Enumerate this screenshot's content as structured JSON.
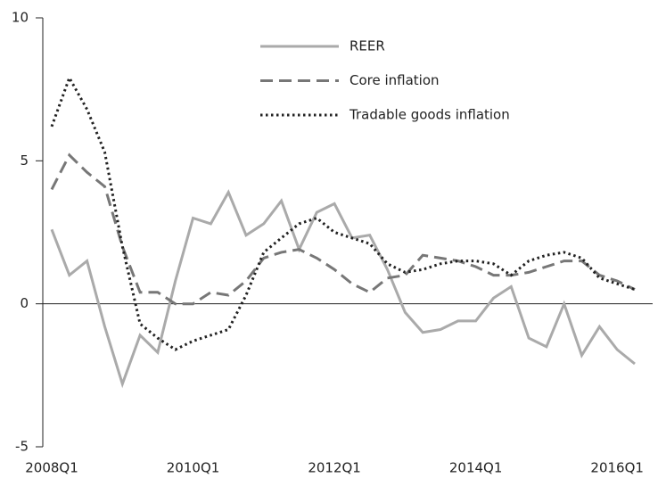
{
  "chart_data": {
    "type": "line",
    "categories": [
      "2008Q1",
      null,
      null,
      null,
      null,
      null,
      null,
      null,
      "2010Q1",
      null,
      null,
      null,
      null,
      null,
      null,
      null,
      "2012Q1",
      null,
      null,
      null,
      null,
      null,
      null,
      null,
      "2014Q1",
      null,
      null,
      null,
      null,
      null,
      null,
      null,
      "2016Q1",
      null
    ],
    "series": [
      {
        "name": "REER",
        "color": "#aaaaaa",
        "dash": "solid",
        "values": [
          2.6,
          1.0,
          1.5,
          -0.8,
          -2.8,
          -1.1,
          -1.7,
          0.8,
          3.0,
          2.8,
          3.9,
          2.4,
          2.8,
          3.6,
          1.9,
          3.2,
          3.5,
          2.3,
          2.4,
          1.2,
          -0.3,
          -1.0,
          -0.9,
          -0.6,
          -0.6,
          0.2,
          0.6,
          -1.2,
          -1.5,
          0.0,
          -1.8,
          -0.8,
          -1.6,
          -2.1
        ]
      },
      {
        "name": "Core inflation",
        "color": "#777777",
        "dash": "dashed",
        "values": [
          4.0,
          5.2,
          4.6,
          4.1,
          2.0,
          0.4,
          0.4,
          0.0,
          0.0,
          0.4,
          0.3,
          0.8,
          1.6,
          1.8,
          1.9,
          1.6,
          1.2,
          0.7,
          0.4,
          0.9,
          1.0,
          1.7,
          1.6,
          1.5,
          1.3,
          1.0,
          1.0,
          1.1,
          1.3,
          1.5,
          1.5,
          1.0,
          0.8,
          0.5
        ]
      },
      {
        "name": "Tradable goods inflation",
        "color": "#222222",
        "dash": "dotted",
        "values": [
          6.2,
          7.9,
          6.8,
          5.3,
          2.0,
          -0.7,
          -1.2,
          -1.6,
          -1.3,
          -1.1,
          -0.9,
          0.3,
          1.8,
          2.3,
          2.8,
          3.0,
          2.5,
          2.3,
          2.1,
          1.4,
          1.1,
          1.2,
          1.4,
          1.5,
          1.5,
          1.4,
          1.0,
          1.5,
          1.7,
          1.8,
          1.6,
          0.9,
          0.7,
          0.5
        ]
      }
    ],
    "ylim": [
      -5,
      10
    ],
    "yticks": [
      -5,
      0,
      5,
      10
    ]
  }
}
